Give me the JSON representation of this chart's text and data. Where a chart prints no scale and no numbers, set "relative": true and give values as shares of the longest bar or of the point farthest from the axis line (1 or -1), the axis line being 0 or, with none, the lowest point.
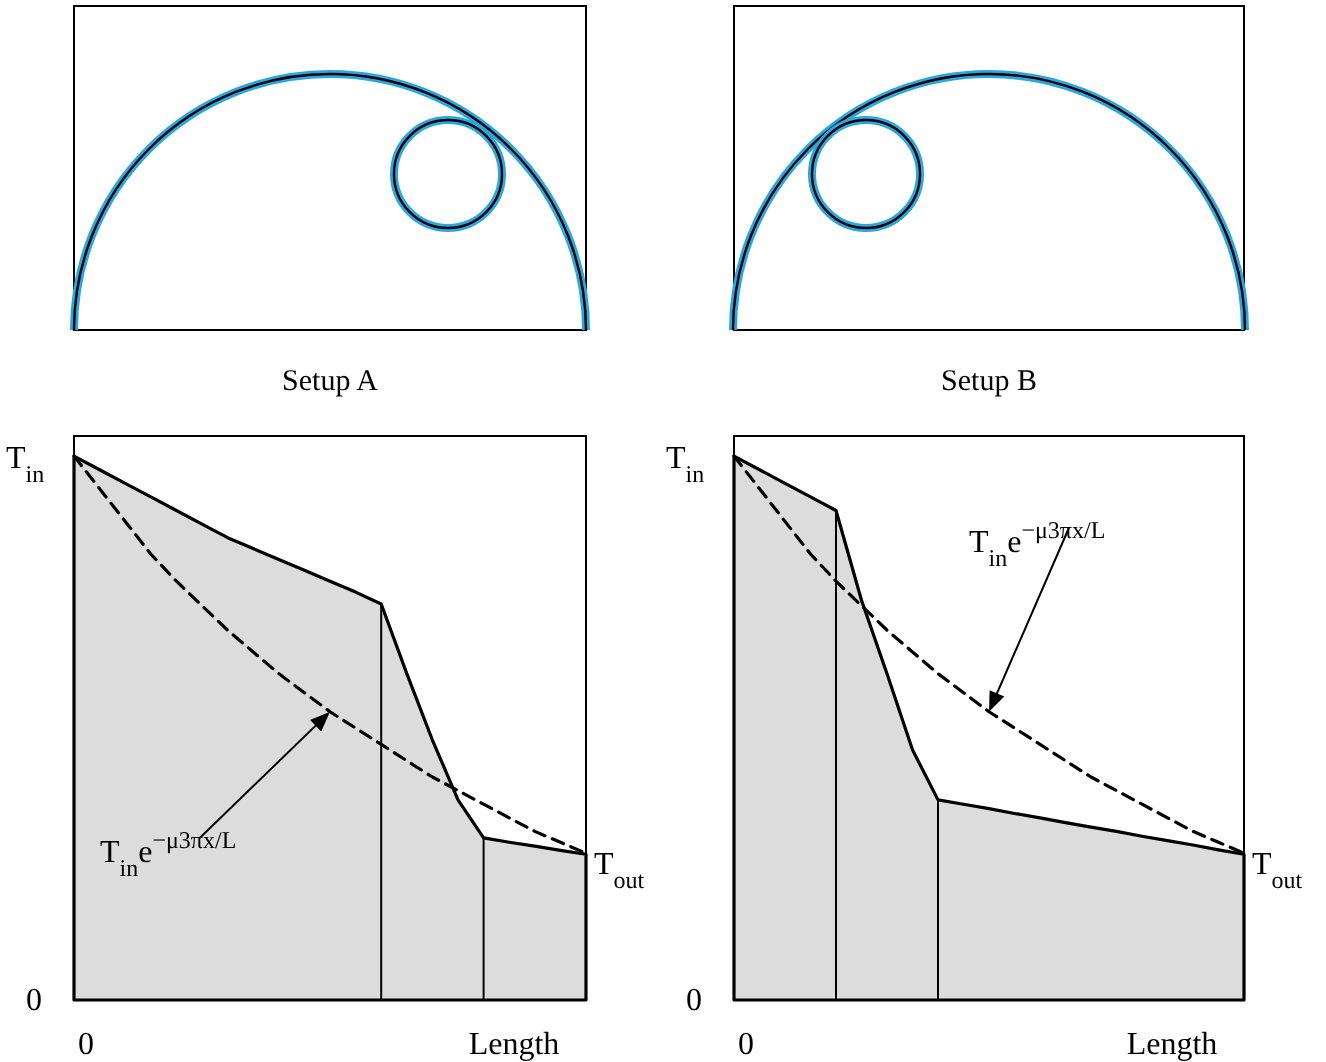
{
  "chart_data": [
    {
      "type": "area",
      "relative": true,
      "title": "Setup A",
      "categories": [
        null,
        null,
        null,
        null,
        null,
        null,
        null,
        null,
        null,
        null,
        null,
        null,
        null,
        null,
        null,
        null,
        null,
        null,
        null,
        null,
        null
      ],
      "series": [
        {
          "color": "#dcdcdc",
          "values": [
            1,
            0.975,
            0.95,
            0.925,
            0.9,
            0.875,
            0.85,
            0.83,
            0.81,
            0.79,
            0.77,
            0.75,
            0.728,
            0.6,
            0.478,
            0.368,
            0.298,
            0.29,
            0.283,
            0.275,
            0.268
          ]
        },
        {
          "type": "line",
          "line_style": "dashed",
          "color": "#000000",
          "values": [
            1,
            0.94,
            0.88,
            0.82,
            0.77,
            0.725,
            0.68,
            0.64,
            0.6,
            0.565,
            0.53,
            0.5,
            0.47,
            0.44,
            0.41,
            0.385,
            0.36,
            0.335,
            0.31,
            0.29,
            0.27
          ]
        }
      ],
      "annotations": [
        "T$_{in}$e$^{−μ3πx/L}$",
        "T$_{out}$",
        "T$_{in}$",
        "0",
        "0",
        "Length"
      ]
    },
    {
      "type": "area",
      "relative": true,
      "title": "Setup B",
      "categories": [
        null,
        null,
        null,
        null,
        null,
        null,
        null,
        null,
        null,
        null,
        null,
        null,
        null,
        null,
        null,
        null,
        null,
        null,
        null,
        null,
        null
      ],
      "series": [
        {
          "color": "#dcdcdc",
          "values": [
            1,
            0.975,
            0.95,
            0.925,
            0.9,
            0.735,
            0.6,
            0.46,
            0.368,
            0.36,
            0.352,
            0.343,
            0.335,
            0.326,
            0.318,
            0.31,
            0.301,
            0.293,
            0.285,
            0.276,
            0.268
          ]
        },
        {
          "type": "line",
          "line_style": "dashed",
          "color": "#000000",
          "values": [
            1,
            0.94,
            0.88,
            0.82,
            0.77,
            0.725,
            0.68,
            0.64,
            0.6,
            0.565,
            0.53,
            0.5,
            0.47,
            0.44,
            0.41,
            0.385,
            0.36,
            0.335,
            0.31,
            0.29,
            0.27
          ]
        }
      ],
      "annotations": [
        "T$_{in}$e$^{−μ3πx/L}$",
        "T$_{out}$",
        "T$_{in}$",
        "0",
        "0",
        "Length"
      ]
    }
  ]
}
